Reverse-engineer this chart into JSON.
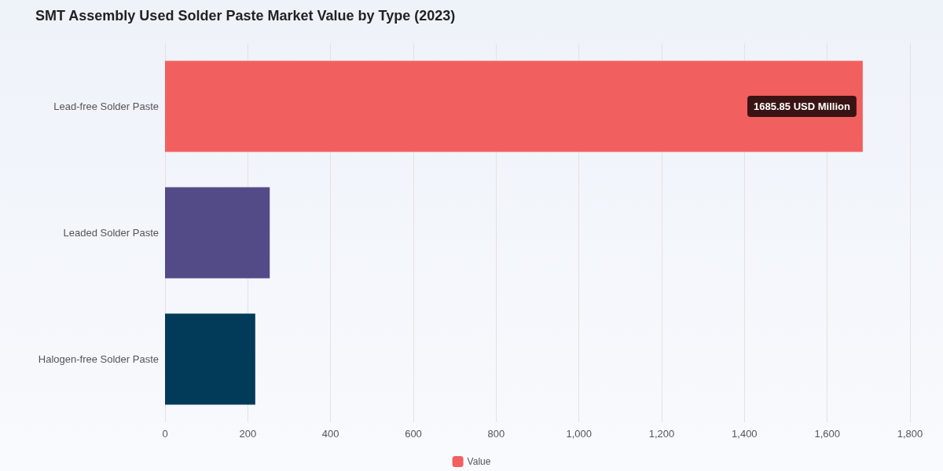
{
  "chart_data": {
    "type": "bar",
    "orientation": "horizontal",
    "title": "SMT Assembly Used Solder Paste Market Value by Type (2023)",
    "categories": [
      "Lead-free Solder Paste",
      "Leaded Solder Paste",
      "Halogen-free Solder Paste"
    ],
    "series": [
      {
        "name": "Value",
        "colors": [
          "#f25f5f",
          "#534b88",
          "#023a5a"
        ],
        "values": [
          1685.85,
          253,
          218
        ]
      }
    ],
    "xlim": [
      0,
      1800
    ],
    "xticks": [
      0,
      200,
      400,
      600,
      800,
      {
        "value": 1000,
        "label": "1,000"
      },
      {
        "value": 1200,
        "label": "1,200"
      },
      {
        "value": 1400,
        "label": "1,400"
      },
      {
        "value": 1600,
        "label": "1,600"
      },
      {
        "value": 1800,
        "label": "1,800"
      }
    ],
    "grid": "x",
    "legend": "bottom",
    "annotations": [
      {
        "text": "1685.85 USD Million",
        "x": 1685.85,
        "y": "Lead-free Solder Paste"
      }
    ]
  }
}
